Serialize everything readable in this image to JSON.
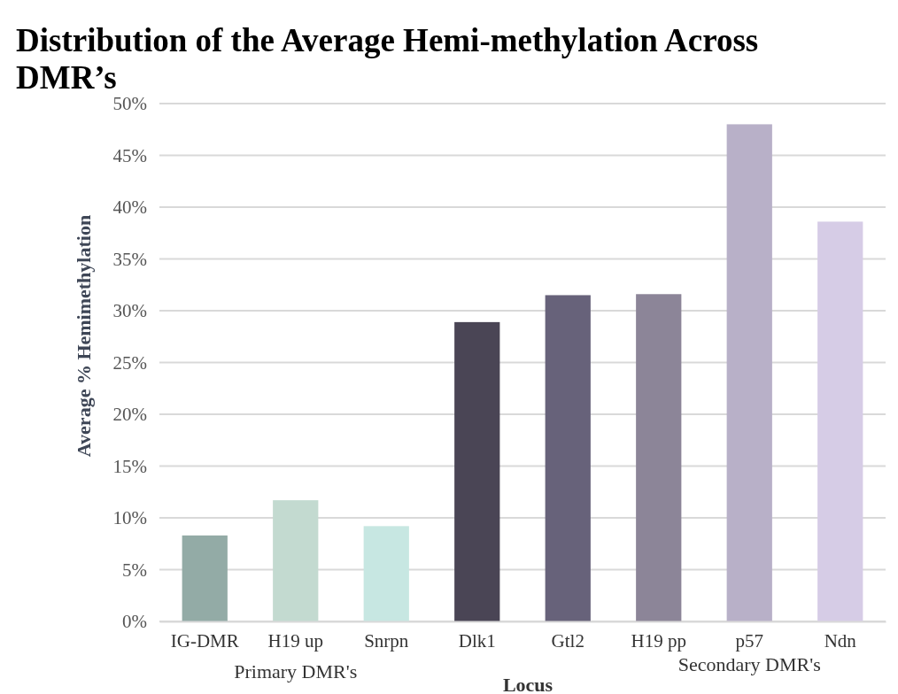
{
  "chart_data": {
    "type": "bar",
    "title": "Distribution of the Average Hemi-methylation Across DMR’s",
    "xlabel": "Locus",
    "ylabel": "Average % Hemimethylation",
    "categories": [
      "IG-DMR",
      "H19 up",
      "Snrpn",
      "Dlk1",
      "Gtl2",
      "H19 pp",
      "p57",
      "Ndn"
    ],
    "values": [
      8.3,
      11.7,
      9.2,
      28.9,
      31.5,
      31.6,
      48.0,
      38.6
    ],
    "colors": [
      "#93aba6",
      "#c3dad0",
      "#c7e7e2",
      "#4a4555",
      "#67627a",
      "#8c8598",
      "#b8b0c8",
      "#d6cce6"
    ],
    "ylim": [
      0,
      50
    ],
    "yticks": [
      {
        "value": 0,
        "label": "0%"
      },
      {
        "value": 5,
        "label": "5%"
      },
      {
        "value": 10,
        "label": "10%"
      },
      {
        "value": 15,
        "label": "15%"
      },
      {
        "value": 20,
        "label": "20%"
      },
      {
        "value": 25,
        "label": "25%"
      },
      {
        "value": 30,
        "label": "30%"
      },
      {
        "value": 35,
        "label": "35%"
      },
      {
        "value": 40,
        "label": "40%"
      },
      {
        "value": 45,
        "label": "45%"
      },
      {
        "value": 50,
        "label": "50%"
      }
    ],
    "grid": "y",
    "annotations": [
      "Primary DMR's",
      "Secondary DMR's"
    ]
  }
}
